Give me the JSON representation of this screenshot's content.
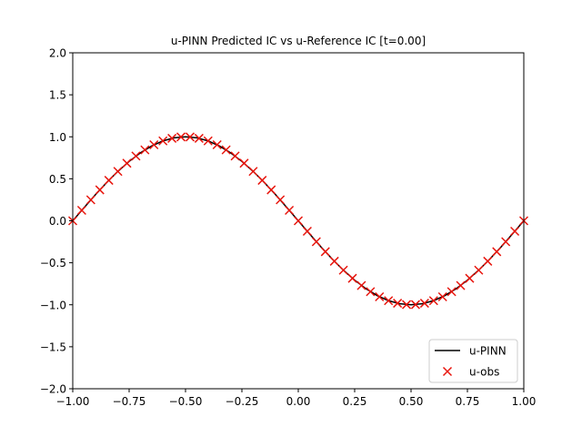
{
  "chart_data": {
    "type": "line",
    "title": "u-PINN Predicted IC vs u-Reference IC [t=0.00]",
    "xlabel": "",
    "ylabel": "",
    "xlim": [
      -1.0,
      1.0
    ],
    "ylim": [
      -2.0,
      2.0
    ],
    "x_ticks": [
      "−1.00",
      "−0.75",
      "−0.50",
      "−0.25",
      "0.00",
      "0.25",
      "0.50",
      "0.75",
      "1.00"
    ],
    "y_ticks": [
      "−2.0",
      "−1.5",
      "−1.0",
      "−0.5",
      "0.0",
      "0.5",
      "1.0",
      "1.5",
      "2.0"
    ],
    "grid": false,
    "legend_position": "lower-right",
    "series": [
      {
        "name": "u-PINN",
        "kind": "line",
        "color": "#000000",
        "x": [
          -1.0,
          -0.95,
          -0.9,
          -0.85,
          -0.8,
          -0.75,
          -0.7,
          -0.65,
          -0.6,
          -0.55,
          -0.5,
          -0.45,
          -0.4,
          -0.35,
          -0.3,
          -0.25,
          -0.2,
          -0.15,
          -0.1,
          -0.05,
          0.0,
          0.05,
          0.1,
          0.15,
          0.2,
          0.25,
          0.3,
          0.35,
          0.4,
          0.45,
          0.5,
          0.55,
          0.6,
          0.65,
          0.7,
          0.75,
          0.8,
          0.85,
          0.9,
          0.95,
          1.0
        ],
        "y": [
          0.0,
          0.156,
          0.309,
          0.454,
          0.588,
          0.707,
          0.809,
          0.891,
          0.951,
          0.988,
          1.0,
          0.988,
          0.951,
          0.891,
          0.809,
          0.707,
          0.588,
          0.454,
          0.309,
          0.156,
          0.0,
          -0.156,
          -0.309,
          -0.454,
          -0.588,
          -0.707,
          -0.809,
          -0.891,
          -0.951,
          -0.988,
          -1.0,
          -0.988,
          -0.951,
          -0.891,
          -0.809,
          -0.707,
          -0.588,
          -0.454,
          -0.309,
          -0.156,
          0.0
        ]
      },
      {
        "name": "u-obs",
        "kind": "scatter",
        "marker": "x",
        "color": "#e8140c",
        "x": [
          -1.0,
          -0.96,
          -0.92,
          -0.88,
          -0.84,
          -0.8,
          -0.76,
          -0.72,
          -0.68,
          -0.64,
          -0.6,
          -0.56,
          -0.52,
          -0.48,
          -0.44,
          -0.4,
          -0.36,
          -0.32,
          -0.28,
          -0.24,
          -0.2,
          -0.16,
          -0.12,
          -0.08,
          -0.04,
          0.0,
          0.04,
          0.08,
          0.12,
          0.16,
          0.2,
          0.24,
          0.28,
          0.32,
          0.36,
          0.4,
          0.44,
          0.48,
          0.52,
          0.56,
          0.6,
          0.64,
          0.68,
          0.72,
          0.76,
          0.8,
          0.84,
          0.88,
          0.92,
          0.96,
          1.0
        ],
        "y": [
          0.0,
          0.125,
          0.249,
          0.368,
          0.482,
          0.588,
          0.685,
          0.771,
          0.844,
          0.905,
          0.951,
          0.982,
          0.998,
          0.998,
          0.982,
          0.951,
          0.905,
          0.844,
          0.771,
          0.685,
          0.588,
          0.482,
          0.368,
          0.249,
          0.125,
          0.0,
          -0.125,
          -0.249,
          -0.368,
          -0.482,
          -0.588,
          -0.685,
          -0.771,
          -0.844,
          -0.905,
          -0.951,
          -0.982,
          -0.998,
          -0.998,
          -0.982,
          -0.951,
          -0.905,
          -0.844,
          -0.771,
          -0.685,
          -0.588,
          -0.482,
          -0.368,
          -0.249,
          -0.125,
          0.0
        ]
      }
    ]
  }
}
